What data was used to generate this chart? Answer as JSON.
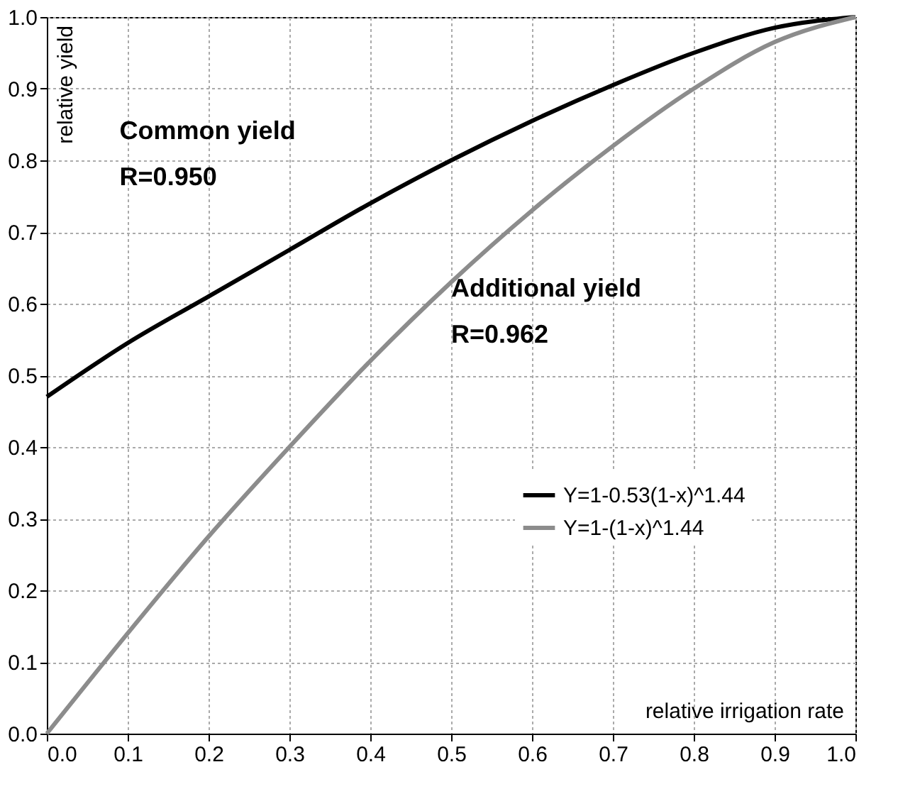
{
  "chart_data": {
    "type": "line",
    "xlabel": "relative irrigation rate",
    "ylabel": "relative yield",
    "x": [
      0,
      0.1,
      0.2,
      0.3,
      0.4,
      0.5,
      0.6,
      0.7,
      0.8,
      0.9,
      1.0
    ],
    "series": [
      {
        "name": "Y=1-0.53(1-x)^1.44",
        "color": "#000000",
        "values": [
          0.47,
          0.545,
          0.61,
          0.675,
          0.74,
          0.8,
          0.855,
          0.905,
          0.95,
          0.985,
          1.0
        ]
      },
      {
        "name": "Y=1-(1-x)^1.44",
        "color": "#8c8c8c",
        "values": [
          0,
          0.14,
          0.275,
          0.4,
          0.52,
          0.63,
          0.73,
          0.82,
          0.9,
          0.965,
          1.0
        ]
      }
    ],
    "annotations": [
      "Common yield",
      "R=0.950",
      "Additional yield",
      "R=0.962"
    ],
    "xlim": [
      0,
      1
    ],
    "ylim": [
      0,
      1
    ],
    "xticks": [
      {
        "value": 0,
        "label": "0.0"
      },
      0.1,
      0.2,
      0.3,
      0.4,
      0.5,
      0.6,
      0.7,
      0.8,
      0.9,
      {
        "value": 1,
        "label": "1.0"
      }
    ],
    "yticks": [
      {
        "value": 0,
        "label": "0.0"
      },
      0.1,
      0.2,
      0.3,
      0.4,
      0.5,
      0.6,
      0.7,
      0.8,
      0.9,
      {
        "value": 1,
        "label": "1.0"
      }
    ],
    "grid": true,
    "legend": "right",
    "marker": "none",
    "line_style": "solid"
  }
}
